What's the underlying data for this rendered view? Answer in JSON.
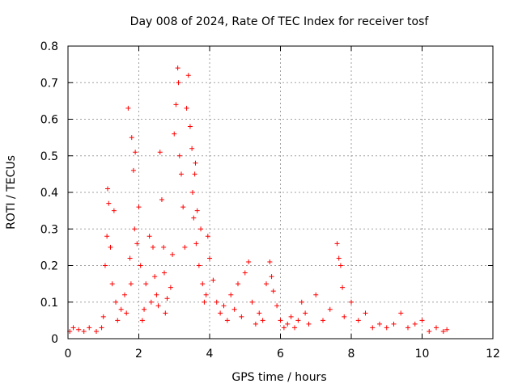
{
  "chart_data": {
    "type": "scatter",
    "title": "Day 008 of 2024, Rate Of TEC Index for receiver tosf",
    "xlabel": "GPS time / hours",
    "ylabel": "ROTI / TECUs",
    "xlim": [
      0,
      12
    ],
    "ylim": [
      0,
      0.8
    ],
    "xticks": [
      0,
      2,
      4,
      6,
      8,
      10,
      12
    ],
    "yticks": [
      0,
      0.1,
      0.2,
      0.3,
      0.4,
      0.5,
      0.6,
      0.7,
      0.8
    ],
    "xtick_labels": [
      "0",
      "2",
      "4",
      "6",
      "8",
      "10",
      "12"
    ],
    "ytick_labels": [
      "0",
      "0.1",
      "0.2",
      "0.3",
      "0.4",
      "0.5",
      "0.6",
      "0.7",
      "0.8"
    ],
    "grid": true,
    "marker": "+",
    "color": "#ff0000",
    "series": [
      {
        "name": "ROTI",
        "x": [
          0.05,
          0.15,
          0.3,
          0.45,
          0.6,
          0.8,
          0.95,
          1.0,
          1.05,
          1.1,
          1.12,
          1.15,
          1.2,
          1.25,
          1.3,
          1.35,
          1.4,
          1.5,
          1.6,
          1.65,
          1.7,
          1.75,
          1.78,
          1.8,
          1.85,
          1.88,
          1.9,
          1.95,
          2.0,
          2.05,
          2.1,
          2.15,
          2.2,
          2.3,
          2.35,
          2.4,
          2.45,
          2.5,
          2.55,
          2.6,
          2.65,
          2.7,
          2.72,
          2.75,
          2.8,
          2.9,
          2.95,
          3.0,
          3.05,
          3.1,
          3.12,
          3.15,
          3.2,
          3.25,
          3.3,
          3.35,
          3.4,
          3.45,
          3.5,
          3.52,
          3.55,
          3.58,
          3.6,
          3.62,
          3.65,
          3.7,
          3.75,
          3.8,
          3.85,
          3.9,
          3.95,
          4.0,
          4.1,
          4.2,
          4.3,
          4.4,
          4.5,
          4.6,
          4.7,
          4.8,
          4.9,
          5.0,
          5.1,
          5.2,
          5.3,
          5.4,
          5.5,
          5.6,
          5.7,
          5.75,
          5.8,
          5.9,
          6.0,
          6.1,
          6.2,
          6.3,
          6.4,
          6.5,
          6.6,
          6.7,
          6.8,
          7.0,
          7.2,
          7.4,
          7.6,
          7.65,
          7.7,
          7.75,
          7.8,
          8.0,
          8.2,
          8.4,
          8.6,
          8.8,
          9.0,
          9.2,
          9.4,
          9.6,
          9.8,
          10.0,
          10.2,
          10.4,
          10.6,
          10.7
        ],
        "y": [
          0.02,
          0.03,
          0.025,
          0.02,
          0.03,
          0.02,
          0.03,
          0.06,
          0.2,
          0.28,
          0.41,
          0.37,
          0.25,
          0.15,
          0.35,
          0.1,
          0.05,
          0.08,
          0.12,
          0.07,
          0.63,
          0.22,
          0.15,
          0.55,
          0.46,
          0.3,
          0.51,
          0.26,
          0.36,
          0.2,
          0.05,
          0.08,
          0.15,
          0.28,
          0.1,
          0.25,
          0.17,
          0.12,
          0.09,
          0.51,
          0.38,
          0.25,
          0.18,
          0.07,
          0.11,
          0.14,
          0.23,
          0.56,
          0.64,
          0.74,
          0.7,
          0.5,
          0.45,
          0.36,
          0.25,
          0.63,
          0.72,
          0.58,
          0.52,
          0.4,
          0.33,
          0.45,
          0.48,
          0.26,
          0.35,
          0.2,
          0.3,
          0.15,
          0.1,
          0.12,
          0.28,
          0.22,
          0.16,
          0.1,
          0.07,
          0.09,
          0.05,
          0.12,
          0.08,
          0.15,
          0.06,
          0.18,
          0.21,
          0.1,
          0.04,
          0.07,
          0.05,
          0.15,
          0.21,
          0.17,
          0.13,
          0.09,
          0.05,
          0.03,
          0.04,
          0.06,
          0.03,
          0.05,
          0.1,
          0.07,
          0.04,
          0.12,
          0.05,
          0.08,
          0.26,
          0.22,
          0.2,
          0.14,
          0.06,
          0.1,
          0.05,
          0.07,
          0.03,
          0.04,
          0.03,
          0.04,
          0.07,
          0.03,
          0.04,
          0.05,
          0.02,
          0.03,
          0.02,
          0.025
        ]
      }
    ]
  }
}
